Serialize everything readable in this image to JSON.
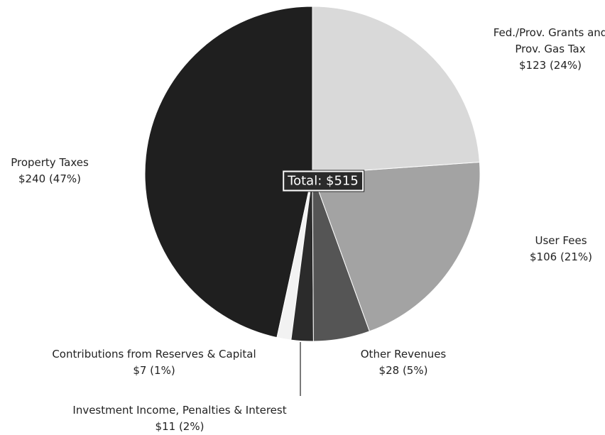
{
  "chart_data": {
    "type": "pie",
    "categories": [
      "Fed./Prov. Grants and Prov. Gas Tax",
      "User Fees",
      "Other Revenues",
      "Investment Income, Penalties & Interest",
      "Contributions from Reserves & Capital",
      "Property Taxes"
    ],
    "values": [
      123,
      106,
      28,
      11,
      7,
      240
    ],
    "value_labels": [
      "$123 (24%)",
      "$106 (21%)",
      "$28 (5%)",
      "$11 (2%)",
      "$7 (1%)",
      "$240 (47%)"
    ],
    "colors": [
      "#d9d9d9",
      "#a3a3a3",
      "#555555",
      "#2b2b2b",
      "#f2f2f2",
      "#1f1f1f"
    ],
    "annotation": "Total: $515"
  }
}
